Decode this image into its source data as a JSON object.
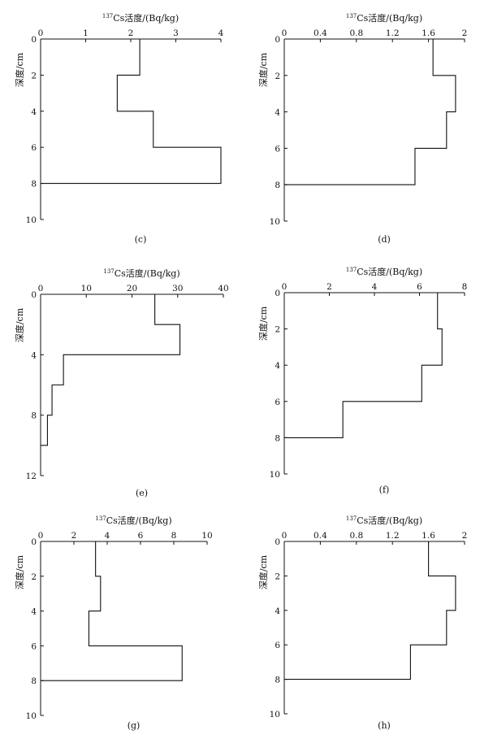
{
  "chart_data": [
    {
      "type": "line",
      "panel_label": "(c)",
      "title": "137Cs活度/(Bq/kg)",
      "title_sup": "137",
      "title_main": "Cs活度/(Bq/kg)",
      "ylabel": "深度/cm",
      "x_ticks": [
        "0",
        "1",
        "2",
        "3",
        "4"
      ],
      "xlim": [
        0,
        4
      ],
      "y_ticks": [
        "0",
        "2",
        "4",
        "6",
        "8",
        "10"
      ],
      "ylim": [
        0,
        10
      ],
      "y_reversed": true,
      "x_axis_position": "top",
      "profile": [
        {
          "depth_top": 0,
          "depth_bottom": 2,
          "activity": 2.2
        },
        {
          "depth_top": 2,
          "depth_bottom": 4,
          "activity": 1.7
        },
        {
          "depth_top": 4,
          "depth_bottom": 6,
          "activity": 2.5
        },
        {
          "depth_top": 6,
          "depth_bottom": 8,
          "activity": 4.0
        }
      ]
    },
    {
      "type": "line",
      "panel_label": "(d)",
      "title": "137Cs活度/(Bq/kg)",
      "title_sup": "137",
      "title_main": "Cs活度/(Bq/kg)",
      "ylabel": "深度/cm",
      "x_ticks": [
        "0",
        "0.4",
        "0.8",
        "1.2",
        "1.6",
        "2"
      ],
      "xlim": [
        0,
        2
      ],
      "y_ticks": [
        "0",
        "2",
        "4",
        "6",
        "8",
        "10"
      ],
      "ylim": [
        0,
        10
      ],
      "y_reversed": true,
      "x_axis_position": "top",
      "profile": [
        {
          "depth_top": 0,
          "depth_bottom": 2,
          "activity": 1.65
        },
        {
          "depth_top": 2,
          "depth_bottom": 4,
          "activity": 1.9
        },
        {
          "depth_top": 4,
          "depth_bottom": 6,
          "activity": 1.8
        },
        {
          "depth_top": 6,
          "depth_bottom": 8,
          "activity": 1.45
        }
      ]
    },
    {
      "type": "line",
      "panel_label": "(e)",
      "title": "137Cs活度/(Bq/kg)",
      "title_sup": "137",
      "title_main": "Cs活度/(Bq/kg)",
      "ylabel": "深度/cm",
      "x_ticks": [
        "0",
        "10",
        "20",
        "30",
        "40"
      ],
      "xlim": [
        0,
        40
      ],
      "y_ticks": [
        "0",
        "4",
        "8",
        "12"
      ],
      "ylim": [
        0,
        12
      ],
      "y_reversed": true,
      "x_axis_position": "top",
      "profile": [
        {
          "depth_top": 0,
          "depth_bottom": 2,
          "activity": 25
        },
        {
          "depth_top": 2,
          "depth_bottom": 4,
          "activity": 30.5
        },
        {
          "depth_top": 4,
          "depth_bottom": 6,
          "activity": 5
        },
        {
          "depth_top": 6,
          "depth_bottom": 8,
          "activity": 2.5
        },
        {
          "depth_top": 8,
          "depth_bottom": 10,
          "activity": 1.5
        }
      ]
    },
    {
      "type": "line",
      "panel_label": "(f)",
      "title": "137Cs活度/(Bq/kg)",
      "title_sup": "137",
      "title_main": "Cs活度/(Bq/kg)",
      "ylabel": "深度/cm",
      "x_ticks": [
        "0",
        "2",
        "4",
        "6",
        "8"
      ],
      "xlim": [
        0,
        8
      ],
      "y_ticks": [
        "0",
        "2",
        "4",
        "6",
        "8",
        "10"
      ],
      "ylim": [
        0,
        10
      ],
      "y_reversed": true,
      "x_axis_position": "top",
      "profile": [
        {
          "depth_top": 0,
          "depth_bottom": 2,
          "activity": 6.8
        },
        {
          "depth_top": 2,
          "depth_bottom": 4,
          "activity": 7.0
        },
        {
          "depth_top": 4,
          "depth_bottom": 6,
          "activity": 6.1
        },
        {
          "depth_top": 6,
          "depth_bottom": 8,
          "activity": 2.6
        }
      ]
    },
    {
      "type": "line",
      "panel_label": "(g)",
      "title": "137Cs活度/(Bq/kg)",
      "title_sup": "137",
      "title_main": "Cs活度/(Bq/kg)",
      "ylabel": "深度/cm",
      "x_ticks": [
        "0",
        "2",
        "4",
        "6",
        "8",
        "10"
      ],
      "xlim": [
        0,
        10
      ],
      "y_ticks": [
        "0",
        "2",
        "4",
        "6",
        "8",
        "10"
      ],
      "ylim": [
        0,
        10
      ],
      "y_reversed": true,
      "x_axis_position": "top",
      "profile": [
        {
          "depth_top": 0,
          "depth_bottom": 2,
          "activity": 3.3
        },
        {
          "depth_top": 2,
          "depth_bottom": 4,
          "activity": 3.6
        },
        {
          "depth_top": 4,
          "depth_bottom": 6,
          "activity": 2.9
        },
        {
          "depth_top": 6,
          "depth_bottom": 8,
          "activity": 8.5
        }
      ]
    },
    {
      "type": "line",
      "panel_label": "(h)",
      "title": "137Cs活度/(Bq/kg)",
      "title_sup": "137",
      "title_main": "Cs活度/(Bq/kg)",
      "ylabel": "深度/cm",
      "x_ticks": [
        "0",
        "0.4",
        "0.8",
        "1.2",
        "1.6",
        "2"
      ],
      "xlim": [
        0,
        2
      ],
      "y_ticks": [
        "0",
        "2",
        "4",
        "6",
        "8",
        "10"
      ],
      "ylim": [
        0,
        10
      ],
      "y_reversed": true,
      "x_axis_position": "top",
      "profile": [
        {
          "depth_top": 0,
          "depth_bottom": 2,
          "activity": 1.6
        },
        {
          "depth_top": 2,
          "depth_bottom": 4,
          "activity": 1.9
        },
        {
          "depth_top": 4,
          "depth_bottom": 6,
          "activity": 1.8
        },
        {
          "depth_top": 6,
          "depth_bottom": 8,
          "activity": 1.4
        }
      ]
    }
  ]
}
